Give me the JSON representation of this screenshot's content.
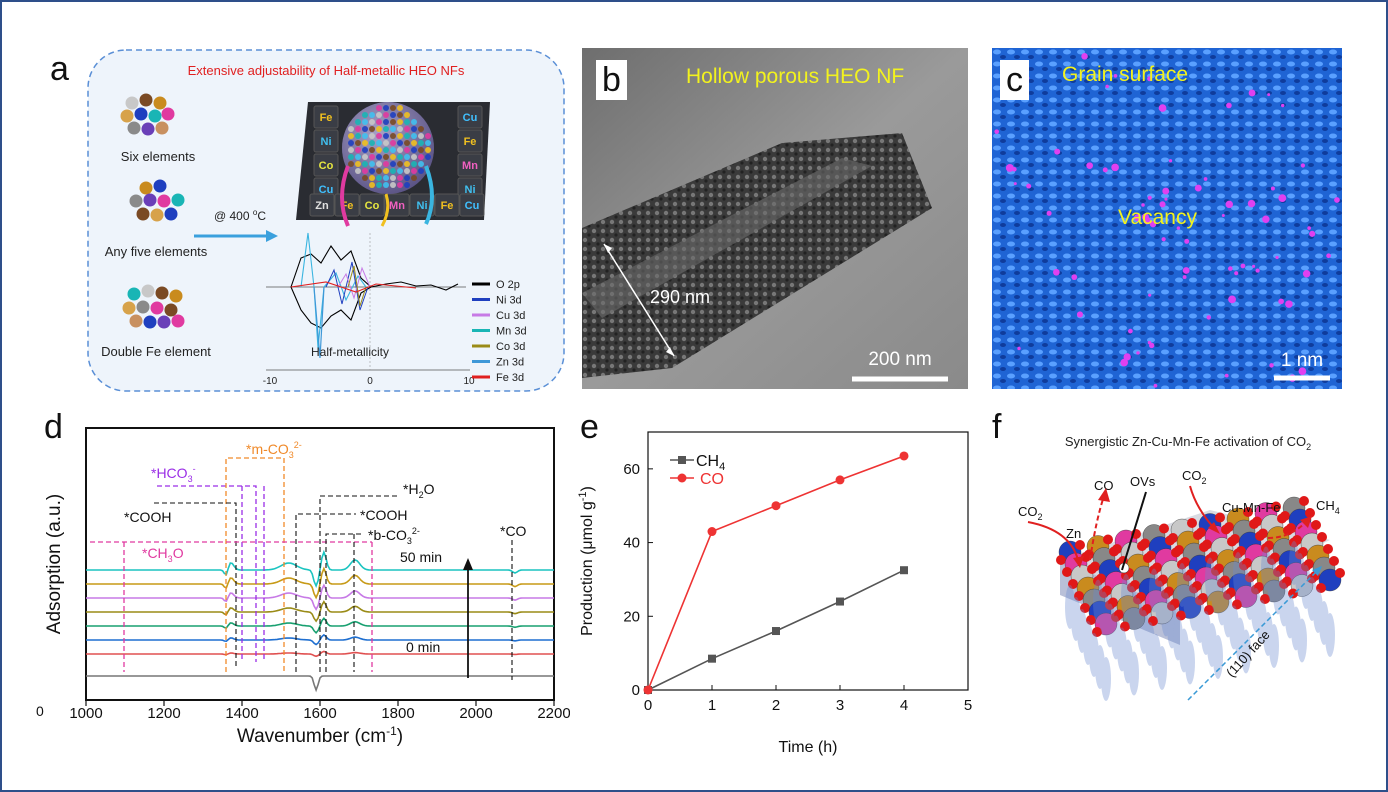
{
  "panels": {
    "a": {
      "label": "a",
      "title": "Extensive adjustability of Half-metallic HEO NFs",
      "groups": [
        "Six elements",
        "Any five elements",
        "Double Fe element"
      ],
      "condition_prefix": "@ 400",
      "condition_sup": "o",
      "condition_suffix": "C",
      "tiles_top": [
        "Fe",
        "Ni",
        "Co",
        "Cu"
      ],
      "tiles_right": [
        "Cu",
        "Fe",
        "Mn",
        "Ni"
      ],
      "tiles_bottom": [
        "Zn",
        "Fe",
        "Co",
        "Mn",
        "Ni",
        "Fe",
        "Cu"
      ],
      "dos_caption": "Half-metallicity",
      "dos_ticks": [
        "-10",
        "0",
        "10"
      ],
      "legend": [
        {
          "name": "O 2p",
          "color": "#000000"
        },
        {
          "name": "Ni 3d",
          "color": "#1f3fbf"
        },
        {
          "name": "Cu 3d",
          "color": "#c77ae6"
        },
        {
          "name": "Mn 3d",
          "color": "#19b5b5"
        },
        {
          "name": "Co 3d",
          "color": "#9a8b17"
        },
        {
          "name": "Zn 3d",
          "color": "#3e98d8"
        },
        {
          "name": "Fe 3d",
          "color": "#e02020"
        }
      ]
    },
    "b": {
      "label": "b",
      "title": "Hollow porous HEO NF",
      "measure": "290 nm",
      "scale": "200 nm"
    },
    "c": {
      "label": "c",
      "title": "Grain surface",
      "feature": "Vacancy",
      "scale": "1 nm"
    },
    "d": {
      "label": "d",
      "ylabel": "Adsorption (a.u.)",
      "xlabel_main": "Wavenumber (cm",
      "xlabel_sup": "-1",
      "xlabel_close": ")",
      "zero_label": "0",
      "x_ticks": [
        "1000",
        "1200",
        "1400",
        "1600",
        "1800",
        "2000",
        "2200"
      ],
      "annotations": {
        "hco3": "*HCO",
        "hco3_sub": "3",
        "hco3_sup": "-",
        "mco3": "*m-CO",
        "mco3_sub": "3",
        "mco3_sup": "2-",
        "cooh_left": "*COOH",
        "ch3o": "*CH",
        "ch3o_sub": "3",
        "ch3o_end": "O",
        "h2o": "*H",
        "h2o_sub": "2",
        "h2o_end": "O",
        "cooh_right": "*COOH",
        "bco3": "*b-CO",
        "bco3_sub": "3",
        "bco3_sup": "2-",
        "co": "*CO",
        "t_end": "50 min",
        "t_start": "0 min"
      },
      "spectrum_colors": [
        "#1ac4c0",
        "#c79a17",
        "#c77ae6",
        "#9a8b17",
        "#18a070",
        "#1f6fd0",
        "#e05050",
        "#777777"
      ]
    },
    "e": {
      "label": "e",
      "ylabel_main": "Production (μmol g",
      "ylabel_sup": "-1",
      "ylabel_close": ")",
      "xlabel": "Time (h)",
      "legend_ch4": "CH",
      "legend_ch4_sub": "4",
      "legend_co": "CO"
    },
    "f": {
      "label": "f",
      "title": "Synergistic Zn-Cu-Mn-Fe activation of CO",
      "title_sub": "2",
      "labels": {
        "co2_left": "CO",
        "co2_left_sub": "2",
        "zn": "Zn",
        "co": "CO",
        "ovs": "OVs",
        "co2_mid": "CO",
        "co2_mid_sub": "2",
        "cumnfe": "Cu-Mn-Fe",
        "ch4": "CH",
        "ch4_sub": "4",
        "face": "(110) face"
      }
    }
  },
  "chart_data": {
    "type": "line",
    "title": "",
    "xlabel": "Time (h)",
    "ylabel": "Production (μmol g-1)",
    "xlim": [
      0,
      5
    ],
    "ylim": [
      0,
      70
    ],
    "x_ticks": [
      0,
      1,
      2,
      3,
      4,
      5
    ],
    "y_ticks": [
      0,
      20,
      40,
      60
    ],
    "legend_position": "top-left",
    "series": [
      {
        "name": "CH4",
        "color": "#555555",
        "marker": "square",
        "x": [
          0,
          1,
          2,
          3,
          4
        ],
        "y": [
          0,
          8.5,
          16,
          24,
          32.5
        ]
      },
      {
        "name": "CO",
        "color": "#ee3333",
        "marker": "circle",
        "x": [
          0,
          1,
          2,
          3,
          4
        ],
        "y": [
          0,
          43,
          50,
          57,
          63.5
        ]
      }
    ]
  }
}
